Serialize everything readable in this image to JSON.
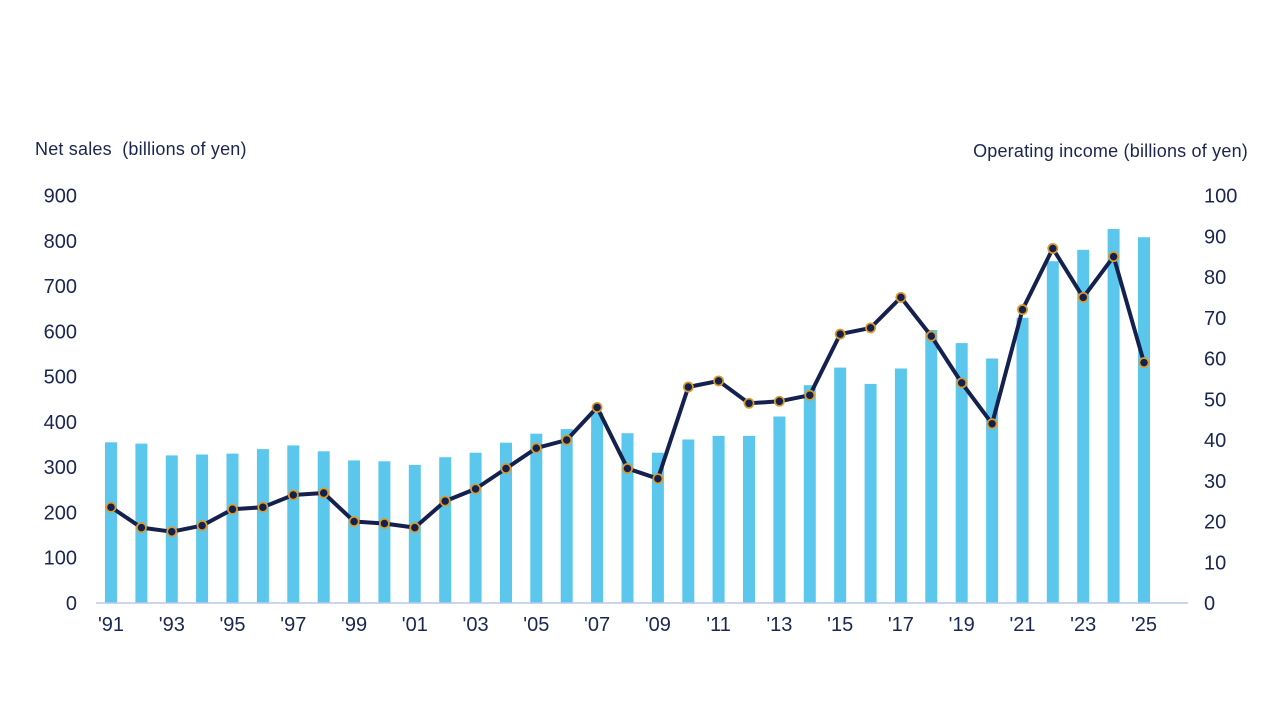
{
  "page": {
    "background": "#ffffff"
  },
  "header": {
    "left_title": "Net sales  (billions of yen)",
    "right_title": "Operating income (billions of yen)"
  },
  "colors": {
    "text": "#1a2551",
    "axis_line": "#b9c7ec",
    "bar": "#5cc7ed",
    "line": "#14204e",
    "marker_ring": "#d99b2e"
  },
  "chart_data": {
    "type": "combo",
    "title": "",
    "grid": false,
    "legend": "none",
    "years": [
      1991,
      1992,
      1993,
      1994,
      1995,
      1996,
      1997,
      1998,
      1999,
      2000,
      2001,
      2002,
      2003,
      2004,
      2005,
      2006,
      2007,
      2008,
      2009,
      2010,
      2011,
      2012,
      2013,
      2014,
      2015,
      2016,
      2017,
      2018,
      2019,
      2020,
      2021,
      2022,
      2023,
      2024,
      2025
    ],
    "x_tick_labels": [
      "'91",
      "'93",
      "'95",
      "'97",
      "'99",
      "'01",
      "'03",
      "'05",
      "'07",
      "'09",
      "'11",
      "'13",
      "'15",
      "'17",
      "'19",
      "'21",
      "'23",
      "'25"
    ],
    "left_axis": {
      "label": "Net sales (billions of yen)",
      "ticks": [
        0,
        100,
        200,
        300,
        400,
        500,
        600,
        700,
        800,
        900
      ],
      "lim": [
        0,
        900
      ]
    },
    "right_axis": {
      "label": "Operating income (billions of yen)",
      "ticks": [
        0,
        10,
        20,
        30,
        40,
        50,
        60,
        70,
        80,
        90,
        100
      ],
      "lim": [
        0,
        100
      ]
    },
    "series": [
      {
        "name": "Net sales",
        "type": "bar",
        "axis": "left",
        "color": "#5cc7ed",
        "values": [
          355,
          352,
          326,
          328,
          330,
          340,
          348,
          335,
          315,
          313,
          305,
          322,
          332,
          354,
          374,
          384,
          420,
          375,
          332,
          361,
          369,
          369,
          412,
          481,
          520,
          484,
          518,
          603,
          574,
          540,
          630,
          755,
          780,
          826,
          808
        ]
      },
      {
        "name": "Operating income",
        "type": "line",
        "axis": "right",
        "color": "#14204e",
        "marker_ring_color": "#d99b2e",
        "values": [
          23.5,
          18.5,
          17.5,
          19,
          23,
          23.5,
          26.5,
          27,
          20,
          19.5,
          18.5,
          25,
          28,
          33,
          38,
          40,
          48,
          33,
          30.5,
          53,
          54.5,
          49,
          49.5,
          51,
          66,
          67.5,
          75,
          65.5,
          54,
          44,
          72,
          87,
          75,
          85,
          59
        ]
      }
    ]
  }
}
